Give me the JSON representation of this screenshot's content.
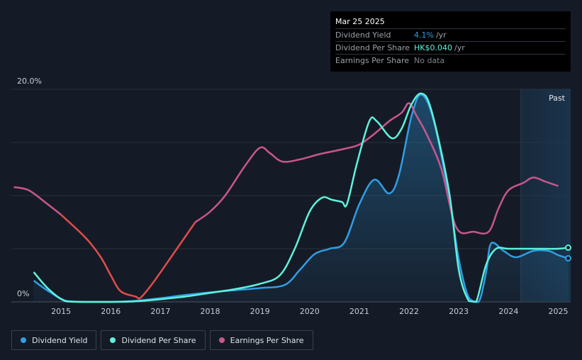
{
  "tooltip": {
    "date": "Mar 25 2025",
    "rows": [
      {
        "name": "Dividend Yield",
        "value": "4.1%",
        "unit": "/yr",
        "color": "#2e9fe6"
      },
      {
        "name": "Dividend Per Share",
        "value": "HK$0.040",
        "unit": "/yr",
        "color": "#5ef2dc"
      },
      {
        "name": "Earnings Per Share",
        "value": "No data",
        "unit": "",
        "color": "#7d848f"
      }
    ]
  },
  "legend": [
    {
      "label": "Dividend Yield",
      "color": "#2e9fe6"
    },
    {
      "label": "Dividend Per Share",
      "color": "#5ef2dc"
    },
    {
      "label": "Earnings Per Share",
      "color": "#c8568f"
    }
  ],
  "chart_data": {
    "type": "line",
    "y_top_label": "20.0%",
    "y_bottom_label": "0%",
    "past_label": "Past",
    "ylim": [
      0,
      20
    ],
    "xlim": [
      2014.0,
      2025.25
    ],
    "x_ticks": [
      "2015",
      "2016",
      "2017",
      "2018",
      "2019",
      "2020",
      "2021",
      "2022",
      "2023",
      "2024",
      "2025"
    ],
    "past_region_start": 2024.25,
    "grid": true,
    "series": [
      {
        "name": "Dividend Yield",
        "color": "#2e9fe6",
        "area": true,
        "points": [
          [
            2014.45,
            2.0
          ],
          [
            2014.75,
            1.0
          ],
          [
            2015.1,
            0.1
          ],
          [
            2015.5,
            0.0
          ],
          [
            2016.0,
            0.0
          ],
          [
            2016.5,
            0.1
          ],
          [
            2017.0,
            0.35
          ],
          [
            2017.5,
            0.65
          ],
          [
            2018.0,
            0.9
          ],
          [
            2018.5,
            1.1
          ],
          [
            2019.0,
            1.3
          ],
          [
            2019.5,
            1.6
          ],
          [
            2019.8,
            3.0
          ],
          [
            2020.1,
            4.5
          ],
          [
            2020.4,
            5.0
          ],
          [
            2020.7,
            5.6
          ],
          [
            2021.0,
            9.2
          ],
          [
            2021.3,
            11.5
          ],
          [
            2021.6,
            10.2
          ],
          [
            2021.8,
            12.0
          ],
          [
            2022.05,
            17.5
          ],
          [
            2022.25,
            19.5
          ],
          [
            2022.5,
            17.0
          ],
          [
            2022.8,
            10.0
          ],
          [
            2023.0,
            4.0
          ],
          [
            2023.2,
            0.4
          ],
          [
            2023.4,
            0.0
          ],
          [
            2023.55,
            2.8
          ],
          [
            2023.65,
            5.5
          ],
          [
            2023.9,
            4.8
          ],
          [
            2024.15,
            4.2
          ],
          [
            2024.5,
            4.8
          ],
          [
            2024.8,
            4.8
          ],
          [
            2025.0,
            4.4
          ],
          [
            2025.2,
            4.1
          ]
        ]
      },
      {
        "name": "Dividend Per Share",
        "color": "#5ef2dc",
        "area": false,
        "points": [
          [
            2014.45,
            2.8
          ],
          [
            2014.75,
            1.2
          ],
          [
            2015.1,
            0.05
          ],
          [
            2015.5,
            0.0
          ],
          [
            2016.0,
            0.0
          ],
          [
            2016.5,
            0.05
          ],
          [
            2017.0,
            0.25
          ],
          [
            2017.5,
            0.5
          ],
          [
            2018.0,
            0.85
          ],
          [
            2018.5,
            1.2
          ],
          [
            2019.0,
            1.7
          ],
          [
            2019.4,
            2.5
          ],
          [
            2019.7,
            5.0
          ],
          [
            2020.0,
            8.5
          ],
          [
            2020.25,
            9.8
          ],
          [
            2020.45,
            9.6
          ],
          [
            2020.65,
            9.4
          ],
          [
            2020.75,
            9.2
          ],
          [
            2020.95,
            13.0
          ],
          [
            2021.2,
            17.0
          ],
          [
            2021.35,
            17.0
          ],
          [
            2021.65,
            15.4
          ],
          [
            2021.85,
            16.3
          ],
          [
            2022.05,
            18.6
          ],
          [
            2022.25,
            19.6
          ],
          [
            2022.45,
            18.0
          ],
          [
            2022.8,
            10.5
          ],
          [
            2023.0,
            3.0
          ],
          [
            2023.2,
            0.1
          ],
          [
            2023.35,
            0.0
          ],
          [
            2023.55,
            3.5
          ],
          [
            2023.75,
            5.0
          ],
          [
            2024.0,
            5.0
          ],
          [
            2024.5,
            5.0
          ],
          [
            2025.0,
            5.0
          ],
          [
            2025.2,
            5.1
          ]
        ]
      },
      {
        "name": "Earnings Per Share",
        "color": "#c8568f",
        "negative_color": "#e04c4c",
        "area": false,
        "points": [
          [
            2014.05,
            10.8
          ],
          [
            2014.35,
            10.5
          ],
          [
            2014.7,
            9.3
          ],
          [
            2015.0,
            8.2
          ],
          [
            2015.5,
            6.0
          ],
          [
            2015.8,
            4.2
          ],
          [
            2016.0,
            2.5
          ],
          [
            2016.2,
            1.0
          ],
          [
            2016.5,
            0.5
          ],
          [
            2016.6,
            0.4
          ],
          [
            2016.85,
            1.8
          ],
          [
            2017.3,
            4.8
          ],
          [
            2017.7,
            7.5
          ],
          [
            2018.0,
            8.5
          ],
          [
            2018.3,
            10.0
          ],
          [
            2018.7,
            12.8
          ],
          [
            2019.0,
            14.5
          ],
          [
            2019.2,
            14.0
          ],
          [
            2019.45,
            13.2
          ],
          [
            2019.8,
            13.4
          ],
          [
            2020.2,
            13.9
          ],
          [
            2020.7,
            14.4
          ],
          [
            2021.0,
            14.8
          ],
          [
            2021.3,
            15.8
          ],
          [
            2021.6,
            17.0
          ],
          [
            2021.85,
            17.8
          ],
          [
            2022.0,
            18.7
          ],
          [
            2022.15,
            17.5
          ],
          [
            2022.35,
            15.8
          ],
          [
            2022.65,
            12.5
          ],
          [
            2022.95,
            7.0
          ],
          [
            2023.3,
            6.6
          ],
          [
            2023.6,
            6.6
          ],
          [
            2023.8,
            8.8
          ],
          [
            2024.0,
            10.5
          ],
          [
            2024.3,
            11.2
          ],
          [
            2024.5,
            11.7
          ],
          [
            2024.75,
            11.3
          ],
          [
            2025.0,
            10.9
          ]
        ]
      }
    ]
  }
}
